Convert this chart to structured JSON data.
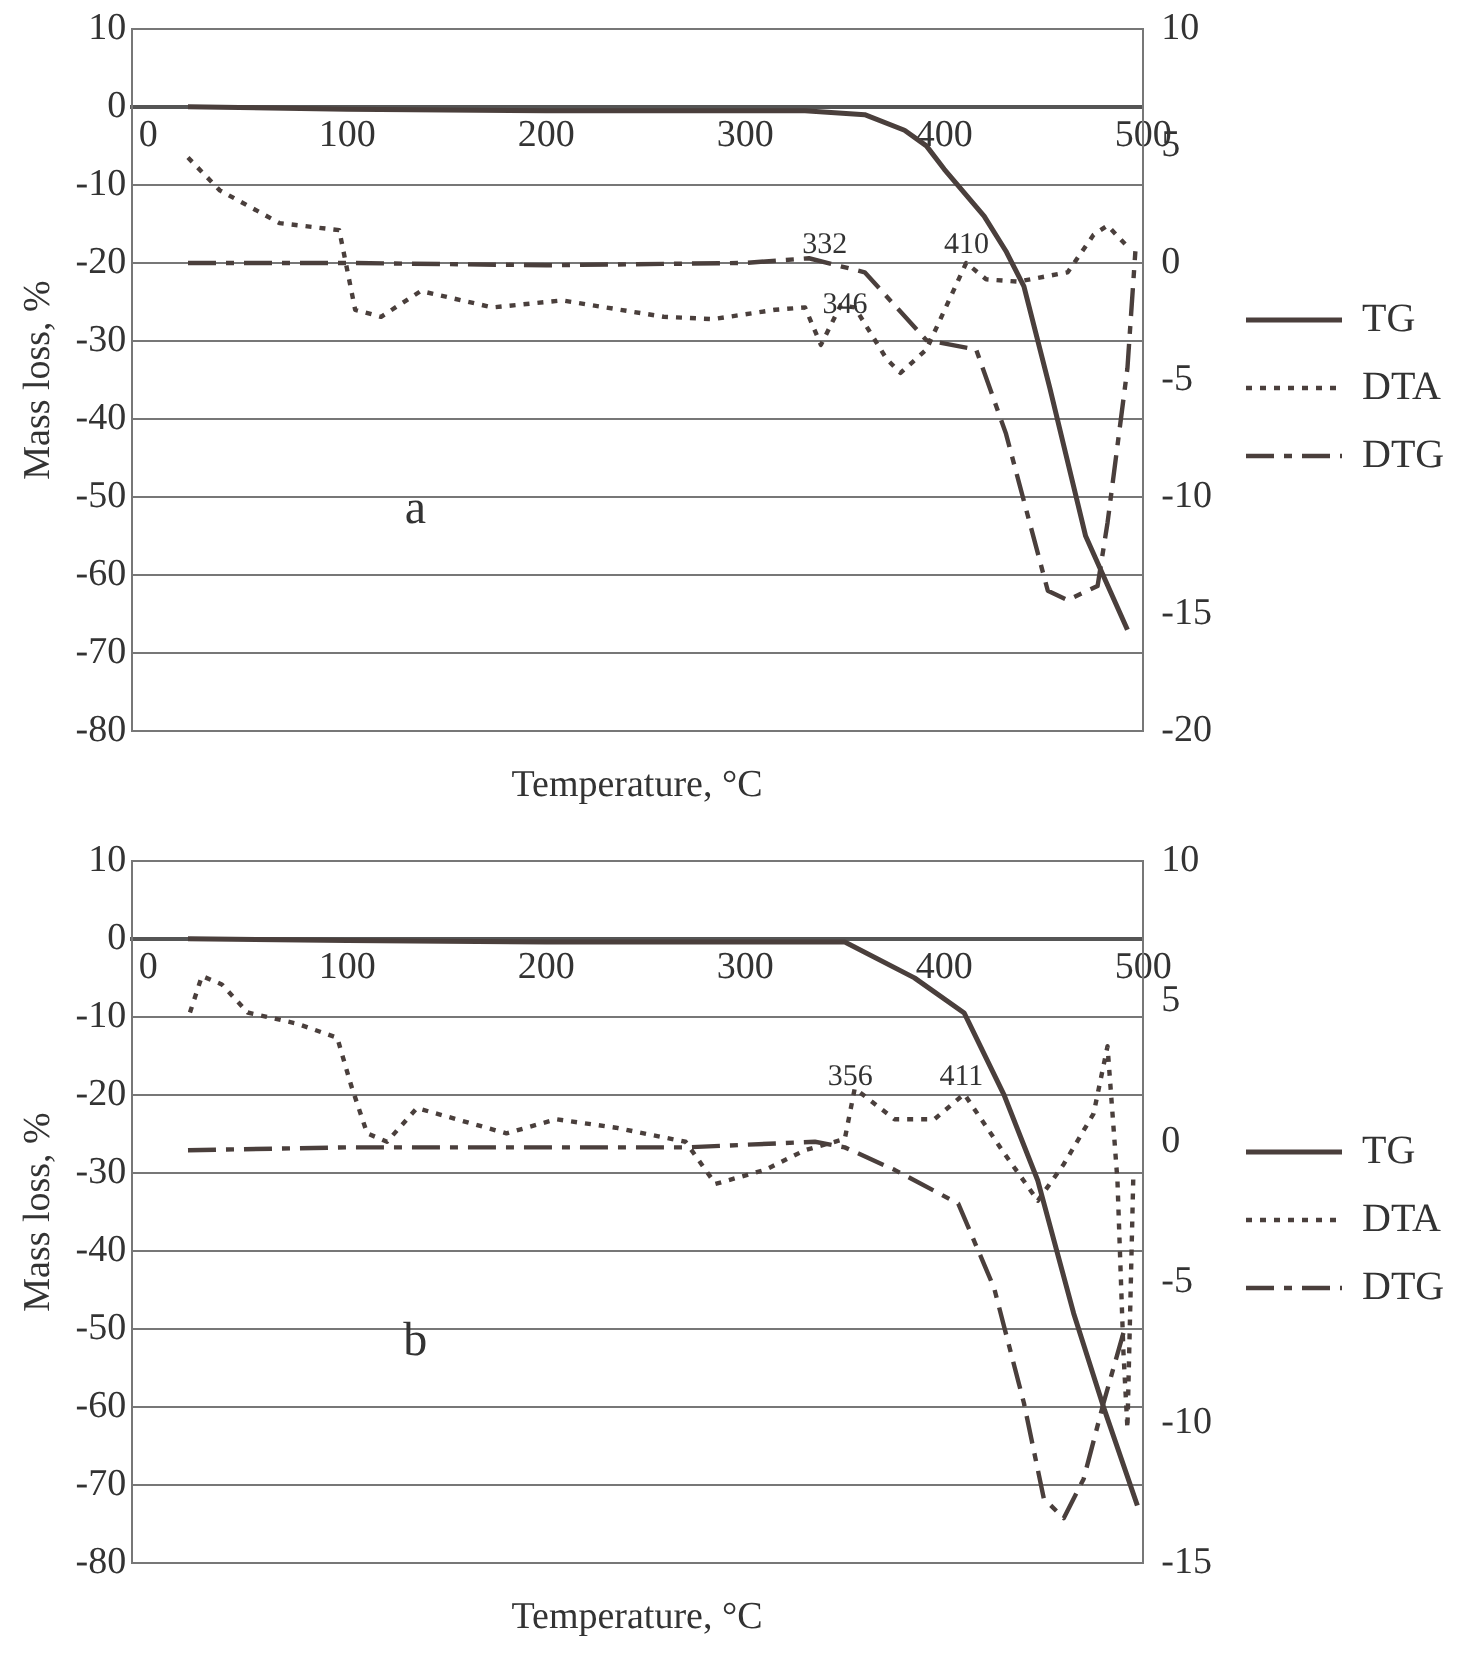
{
  "chart_data": [
    {
      "type": "line",
      "xlabel": "Temperature, °C",
      "ylabel": "Mass loss, %",
      "xlim": [
        -8,
        500
      ],
      "xticks": [
        0,
        100,
        200,
        300,
        400,
        500
      ],
      "ylim": [
        -80,
        10
      ],
      "yticks": [
        -80,
        -70,
        -60,
        -50,
        -40,
        -30,
        -20,
        -10,
        0,
        10
      ],
      "y2lim": [
        -20,
        10
      ],
      "y2ticks": [
        -20,
        -15,
        -10,
        -5,
        0,
        5,
        10
      ],
      "grid": "y",
      "legend": "right",
      "marker": "none",
      "series": [
        {
          "name": "TG",
          "color": "#4a3f3c",
          "line_style": "solid",
          "x": [
            20,
            100,
            200,
            300,
            330,
            360,
            380,
            391,
            400,
            420,
            431,
            440,
            453,
            471,
            492
          ],
          "values": [
            0,
            -0.3,
            -0.5,
            -0.5,
            -0.5,
            -1,
            -3,
            -5,
            -8,
            -14,
            -18.5,
            -23,
            -36,
            -55,
            -67
          ]
        },
        {
          "name": "DTA",
          "color": "#4a3f3c",
          "line_style": "dotted",
          "axis": "y2",
          "x": [
            20,
            36,
            66,
            96,
            104,
            117,
            137,
            173,
            208,
            259,
            284,
            315,
            330,
            338,
            348,
            355,
            371,
            378,
            391,
            411,
            421,
            437,
            462,
            475,
            482,
            492
          ],
          "values": [
            4.5,
            3.1,
            1.7,
            1.4,
            -2,
            -2.3,
            -1.2,
            -1.9,
            -1.6,
            -2.3,
            -2.4,
            -2,
            -1.9,
            -3.5,
            -1.8,
            -1.9,
            -4.1,
            -4.7,
            -3.7,
            0,
            -0.7,
            -0.8,
            -0.4,
            1.2,
            1.6,
            0.7
          ]
        },
        {
          "name": "DTG",
          "color": "#4a3f3c",
          "line_style": "dashed",
          "axis": "y2",
          "x": [
            20,
            100,
            200,
            300,
            332,
            360,
            391,
            416,
            431,
            452,
            462,
            477,
            482,
            492,
            496
          ],
          "values": [
            0,
            0,
            -0.1,
            0,
            0.2,
            -0.4,
            -3.3,
            -3.7,
            -7.3,
            -14,
            -14.4,
            -13.8,
            -11.1,
            -4.5,
            0.5
          ]
        }
      ],
      "annotations": [
        "332",
        "346",
        "410",
        "a"
      ]
    },
    {
      "type": "line",
      "xlabel": "Temperature, °C",
      "ylabel": "Mass loss, %",
      "xlim": [
        -8,
        500
      ],
      "xticks": [
        0,
        100,
        200,
        300,
        400,
        500
      ],
      "ylim": [
        -80,
        10
      ],
      "yticks": [
        -80,
        -70,
        -60,
        -50,
        -40,
        -30,
        -20,
        -10,
        0,
        10
      ],
      "y2lim": [
        -15,
        10
      ],
      "y2ticks": [
        -15,
        -10,
        -5,
        0,
        5,
        10
      ],
      "grid": "y",
      "legend": "right",
      "marker": "none",
      "series": [
        {
          "name": "TG",
          "color": "#4a3f3c",
          "line_style": "solid",
          "x": [
            20,
            100,
            200,
            300,
            350,
            385,
            410,
            430,
            447,
            465,
            480,
            497
          ],
          "values": [
            0,
            -0.2,
            -0.4,
            -0.4,
            -0.4,
            -5,
            -9.5,
            -20,
            -31,
            -48,
            -60,
            -72.6
          ]
        },
        {
          "name": "DTA",
          "color": "#4a3f3c",
          "line_style": "dotted",
          "axis": "y2",
          "x": [
            21,
            27,
            37,
            50,
            75,
            95,
            102,
            110,
            120,
            135,
            160,
            180,
            205,
            235,
            270,
            285,
            310,
            330,
            350,
            355,
            375,
            395,
            410,
            430,
            447,
            460,
            475,
            482,
            487,
            490,
            492,
            495
          ],
          "values": [
            4.6,
            5.9,
            5.6,
            4.6,
            4.2,
            3.7,
            2,
            0.3,
            0,
            1.2,
            0.7,
            0.3,
            0.8,
            0.5,
            0,
            -1.5,
            -1,
            -0.3,
            0.1,
            1.9,
            0.8,
            0.8,
            1.7,
            -0.4,
            -2.1,
            -0.8,
            1,
            3.4,
            -1.4,
            -7.5,
            -10.2,
            -1.1
          ]
        },
        {
          "name": "DTG",
          "color": "#4a3f3c",
          "line_style": "dashed",
          "axis": "y2",
          "x": [
            20,
            100,
            200,
            270,
            335,
            350,
            375,
            407,
            425,
            440,
            450,
            460,
            470,
            480,
            490
          ],
          "values": [
            -0.3,
            -0.2,
            -0.2,
            -0.2,
            0,
            -0.2,
            -1,
            -2.2,
            -5.2,
            -9.3,
            -12.7,
            -13.4,
            -12,
            -9.3,
            -6.8
          ]
        }
      ],
      "annotations": [
        "356",
        "411",
        "b"
      ]
    }
  ]
}
